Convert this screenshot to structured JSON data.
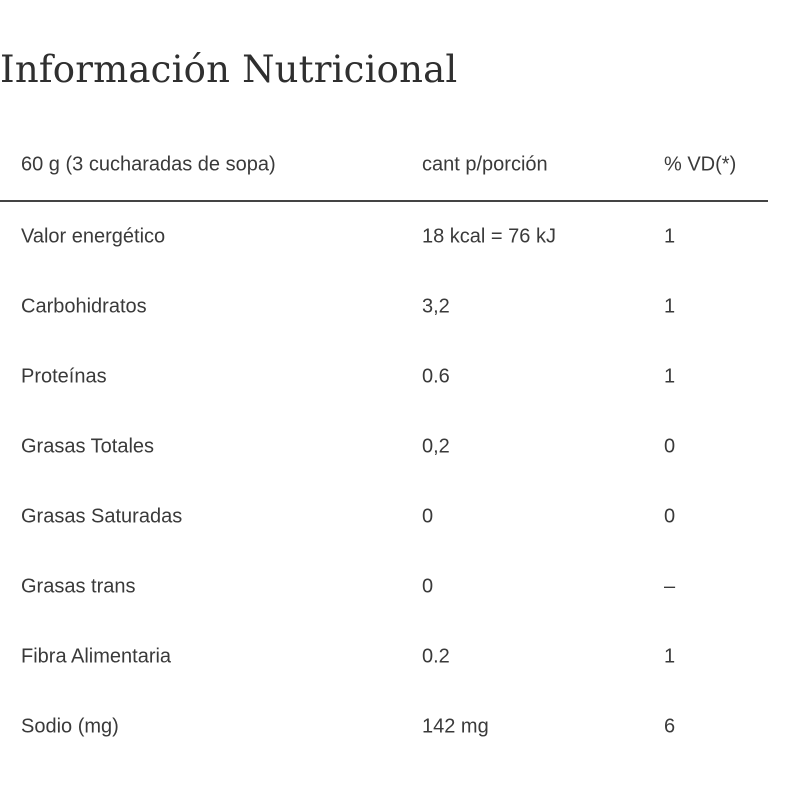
{
  "title": "Información Nutricional",
  "table": {
    "header": {
      "portion": "60 g (3 cucharadas de sopa)",
      "amount": "cant p/porción",
      "daily_value": "% VD(*)"
    },
    "rows": [
      {
        "nutrient": "Valor energético",
        "amount": "18 kcal = 76 kJ",
        "daily_value": "1"
      },
      {
        "nutrient": "Carbohidratos",
        "amount": "3,2",
        "daily_value": "1"
      },
      {
        "nutrient": "Proteínas",
        "amount": "0.6",
        "daily_value": "1"
      },
      {
        "nutrient": "Grasas Totales",
        "amount": "0,2",
        "daily_value": "0"
      },
      {
        "nutrient": "Grasas Saturadas",
        "amount": "0",
        "daily_value": "0"
      },
      {
        "nutrient": "Grasas trans",
        "amount": "0",
        "daily_value": "–"
      },
      {
        "nutrient": "Fibra Alimentaria",
        "amount": "0.2",
        "daily_value": "1"
      },
      {
        "nutrient": "Sodio (mg)",
        "amount": "142 mg",
        "daily_value": "6"
      }
    ]
  }
}
